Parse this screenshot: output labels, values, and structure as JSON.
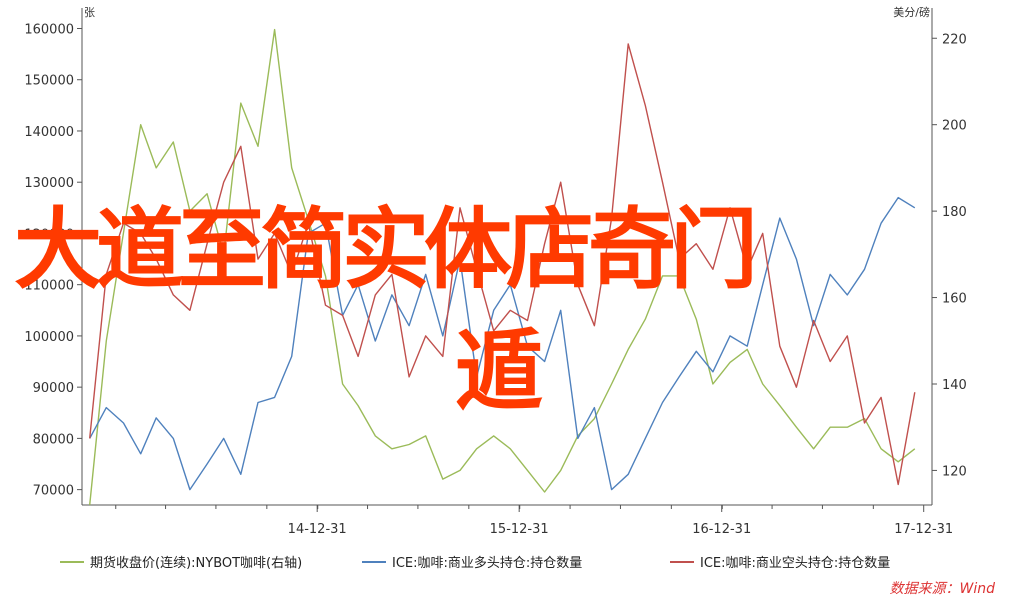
{
  "chart_data": {
    "type": "line",
    "left_axis_unit": "张",
    "right_axis_unit": "美分/磅",
    "x_ticks": [
      "14-12-31",
      "15-12-31",
      "16-12-31",
      "17-12-31"
    ],
    "y_left_ticks": [
      70000,
      80000,
      90000,
      100000,
      110000,
      120000,
      130000,
      140000,
      150000,
      160000
    ],
    "y_right_ticks": [
      120,
      140,
      160,
      180,
      200,
      220
    ],
    "ylim_left": [
      67000,
      164000
    ],
    "ylim_right": [
      112,
      227
    ],
    "grid": false,
    "legend_position": "bottom",
    "series": [
      {
        "name": "期货收盘价(连续):NYBOT咖啡(右轴)",
        "axis": "right",
        "color": "#9bbb59",
        "x": [
          "2013-11",
          "2013-12",
          "2014-01",
          "2014-02",
          "2014-03",
          "2014-04",
          "2014-05",
          "2014-06",
          "2014-07",
          "2014-08",
          "2014-09",
          "2014-10",
          "2014-11",
          "2014-12",
          "2015-01",
          "2015-02",
          "2015-03",
          "2015-04",
          "2015-05",
          "2015-06",
          "2015-07",
          "2015-08",
          "2015-09",
          "2015-10",
          "2015-11",
          "2015-12",
          "2016-01",
          "2016-02",
          "2016-03",
          "2016-04",
          "2016-05",
          "2016-06",
          "2016-07",
          "2016-08",
          "2016-09",
          "2016-10",
          "2016-11",
          "2016-12",
          "2017-01",
          "2017-02",
          "2017-03",
          "2017-04",
          "2017-05",
          "2017-06",
          "2017-07",
          "2017-08",
          "2017-09",
          "2017-10",
          "2017-11",
          "2017-12"
        ],
        "values": [
          112,
          150,
          175,
          200,
          190,
          196,
          180,
          184,
          170,
          205,
          195,
          222,
          190,
          178,
          165,
          140,
          135,
          128,
          125,
          126,
          128,
          118,
          120,
          125,
          128,
          125,
          120,
          115,
          120,
          128,
          132,
          140,
          148,
          155,
          165,
          165,
          155,
          140,
          145,
          148,
          140,
          135,
          130,
          125,
          130,
          130,
          132,
          125,
          122,
          125
        ]
      },
      {
        "name": "ICE:咖啡:商业多头持仓:持仓数量",
        "axis": "left",
        "color": "#4f81bd",
        "x": [
          "2013-11",
          "2013-12",
          "2014-01",
          "2014-02",
          "2014-03",
          "2014-04",
          "2014-05",
          "2014-06",
          "2014-07",
          "2014-08",
          "2014-09",
          "2014-10",
          "2014-11",
          "2014-12",
          "2015-01",
          "2015-02",
          "2015-03",
          "2015-04",
          "2015-05",
          "2015-06",
          "2015-07",
          "2015-08",
          "2015-09",
          "2015-10",
          "2015-11",
          "2015-12",
          "2016-01",
          "2016-02",
          "2016-03",
          "2016-04",
          "2016-05",
          "2016-06",
          "2016-07",
          "2016-08",
          "2016-09",
          "2016-10",
          "2016-11",
          "2016-12",
          "2017-01",
          "2017-02",
          "2017-03",
          "2017-04",
          "2017-05",
          "2017-06",
          "2017-07",
          "2017-08",
          "2017-09",
          "2017-10",
          "2017-11",
          "2017-12"
        ],
        "values": [
          80000,
          86000,
          83000,
          77000,
          84000,
          80000,
          70000,
          75000,
          80000,
          73000,
          87000,
          88000,
          96000,
          120000,
          122000,
          104000,
          110000,
          99000,
          108000,
          102000,
          112000,
          100000,
          115000,
          92000,
          105000,
          110000,
          98000,
          95000,
          105000,
          80000,
          86000,
          70000,
          73000,
          80000,
          87000,
          92000,
          97000,
          93000,
          100000,
          98000,
          110000,
          123000,
          115000,
          102000,
          112000,
          108000,
          113000,
          122000,
          127000,
          125000
        ]
      },
      {
        "name": "ICE:咖啡:商业空头持仓:持仓数量",
        "axis": "left",
        "color": "#c0504d",
        "x": [
          "2013-11",
          "2013-12",
          "2014-01",
          "2014-02",
          "2014-03",
          "2014-04",
          "2014-05",
          "2014-06",
          "2014-07",
          "2014-08",
          "2014-09",
          "2014-10",
          "2014-11",
          "2014-12",
          "2015-01",
          "2015-02",
          "2015-03",
          "2015-04",
          "2015-05",
          "2015-06",
          "2015-07",
          "2015-08",
          "2015-09",
          "2015-10",
          "2015-11",
          "2015-12",
          "2016-01",
          "2016-02",
          "2016-03",
          "2016-04",
          "2016-05",
          "2016-06",
          "2016-07",
          "2016-08",
          "2016-09",
          "2016-10",
          "2016-11",
          "2016-12",
          "2017-01",
          "2017-02",
          "2017-03",
          "2017-04",
          "2017-05",
          "2017-06",
          "2017-07",
          "2017-08",
          "2017-09",
          "2017-10",
          "2017-11",
          "2017-12"
        ],
        "values": [
          80000,
          112000,
          122000,
          120000,
          115000,
          108000,
          105000,
          118000,
          130000,
          137000,
          115000,
          120000,
          112000,
          122000,
          106000,
          104000,
          96000,
          108000,
          112000,
          92000,
          100000,
          96000,
          125000,
          113000,
          101000,
          105000,
          103000,
          118000,
          130000,
          110000,
          102000,
          123000,
          157000,
          145000,
          130000,
          115000,
          118000,
          113000,
          125000,
          113000,
          120000,
          98000,
          90000,
          103000,
          95000,
          100000,
          83000,
          88000,
          71000,
          89000
        ]
      }
    ]
  },
  "watermark": {
    "line1": "大道至简实体店奇门",
    "line2": "遁"
  },
  "source": "数据来源：Wind"
}
